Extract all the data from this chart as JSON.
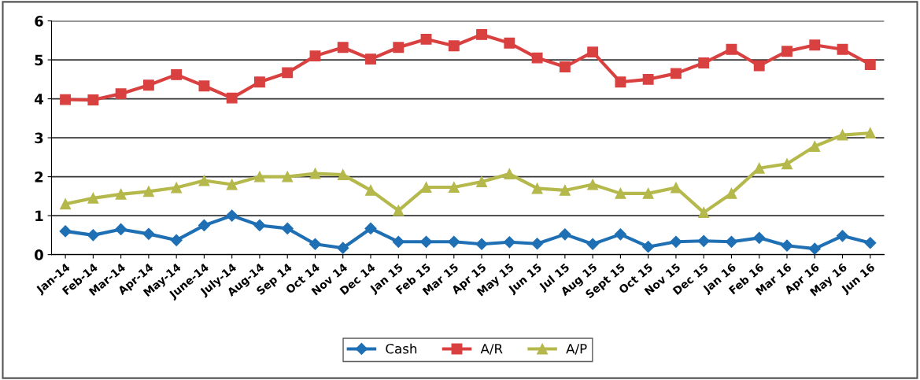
{
  "chart_data": {
    "type": "line",
    "categories": [
      "Jan-14",
      "Feb-14",
      "Mar-14",
      "Apr-14",
      "May-14",
      "June-14",
      "July-14",
      "Aug-14",
      "Sep 14",
      "Oct 14",
      "Nov 14",
      "Dec 14",
      "Jan 15",
      "Feb 15",
      "Mar 15",
      "Apr 15",
      "May 15",
      "Jun 15",
      "Jul 15",
      "Aug 15",
      "Sept 15",
      "Oct 15",
      "Nov 15",
      "Dec 15",
      "Jan 16",
      "Feb 16",
      "Mar 16",
      "Apr 16",
      "May 16",
      "Jun 16"
    ],
    "series": [
      {
        "name": "Cash",
        "color": "#1f6fb4",
        "marker": "diamond",
        "values": [
          0.6,
          0.5,
          0.65,
          0.53,
          0.37,
          0.75,
          1.0,
          0.75,
          0.67,
          0.27,
          0.17,
          0.67,
          0.33,
          0.33,
          0.33,
          0.27,
          0.32,
          0.28,
          0.52,
          0.27,
          0.52,
          0.2,
          0.33,
          0.35,
          0.33,
          0.43,
          0.23,
          0.15,
          0.48,
          0.3
        ]
      },
      {
        "name": "A/R",
        "color": "#d94040",
        "marker": "square",
        "values": [
          3.98,
          3.97,
          4.13,
          4.35,
          4.62,
          4.33,
          4.02,
          4.43,
          4.67,
          5.1,
          5.32,
          5.02,
          5.32,
          5.53,
          5.36,
          5.65,
          5.43,
          5.05,
          4.82,
          5.2,
          4.43,
          4.5,
          4.65,
          4.92,
          5.27,
          4.85,
          5.22,
          5.38,
          5.27,
          4.88
        ]
      },
      {
        "name": "A/P",
        "color": "#b5b84a",
        "marker": "triangle",
        "values": [
          1.3,
          1.45,
          1.55,
          1.62,
          1.72,
          1.9,
          1.8,
          2.0,
          2.0,
          2.08,
          2.05,
          1.65,
          1.13,
          1.73,
          1.73,
          1.87,
          2.07,
          1.7,
          1.65,
          1.8,
          1.57,
          1.57,
          1.72,
          1.08,
          1.57,
          2.22,
          2.33,
          2.78,
          3.07,
          3.12
        ]
      }
    ],
    "ylim": [
      0,
      6
    ],
    "yticks": [
      0,
      1,
      2,
      3,
      4,
      5,
      6
    ],
    "grid": "y",
    "legend": "bottom",
    "line_style": "solid"
  }
}
